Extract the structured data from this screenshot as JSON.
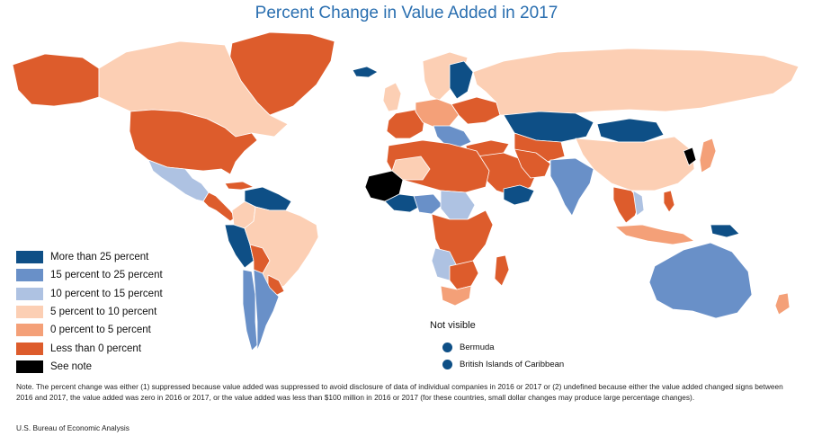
{
  "title": "Percent Change in Value Added in 2017",
  "colors": {
    "more_than_25": "#0e4f86",
    "p15_25": "#6990c8",
    "p10_15": "#aec2e2",
    "p5_10": "#fccfb4",
    "p0_5": "#f4a078",
    "less_than_0": "#dd5c2c",
    "see_note": "#000000",
    "no_data": "#ffffff",
    "border": "#ffffff"
  },
  "legend": {
    "items": [
      {
        "label": "More than 25 percent",
        "color": "#0e4f86"
      },
      {
        "label": "15 percent to 25 percent",
        "color": "#6990c8"
      },
      {
        "label": "10 percent to 15 percent",
        "color": "#aec2e2"
      },
      {
        "label": "5 percent to 10 percent",
        "color": "#fccfb4"
      },
      {
        "label": "0 percent to 5 percent",
        "color": "#f4a078"
      },
      {
        "label": "Less than 0 percent",
        "color": "#dd5c2c"
      },
      {
        "label": "See note",
        "color": "#000000"
      }
    ]
  },
  "not_visible": {
    "title": "Not visible",
    "items": [
      {
        "label": "Bermuda"
      },
      {
        "label": "British Islands of Caribbean"
      }
    ]
  },
  "note": "Note. The percent change was either (1) suppressed because value added was suppressed to avoid disclosure of data of individual companies in 2016 or 2017 or (2) undefined because either the value added changed signs between 2016 and 2017, the value added was zero in 2016 or 2017, or the value added was less than $100 million in 2016 or 2017 (for these countries, small dollar changes may produce large percentage changes).",
  "source": "U.S. Bureau of Economic Analysis"
}
